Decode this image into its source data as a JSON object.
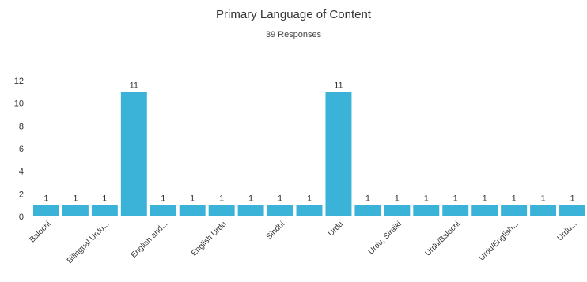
{
  "chart_data": {
    "type": "bar",
    "title": "Primary Language of Content",
    "subtitle": "39 Responses",
    "xlabel": "",
    "ylabel": "",
    "ylim": [
      0,
      12
    ],
    "yticks": [
      0,
      2,
      4,
      6,
      8,
      10,
      12
    ],
    "grid": false,
    "legend": "none",
    "bar_color": "#3BB3D8",
    "categories": [
      "Balochi",
      "",
      "Bilingual Urdu...",
      "",
      "English and...",
      "",
      "English Urdu",
      "",
      "Sindhi",
      "",
      "Urdu",
      "",
      "Urdu, Siraiki",
      "",
      "Urdu/Balochi",
      "",
      "Urdu/English...",
      "",
      "Urdu..."
    ],
    "values": [
      1,
      1,
      1,
      11,
      1,
      1,
      1,
      1,
      1,
      1,
      11,
      1,
      1,
      1,
      1,
      1,
      1,
      1,
      1
    ]
  }
}
